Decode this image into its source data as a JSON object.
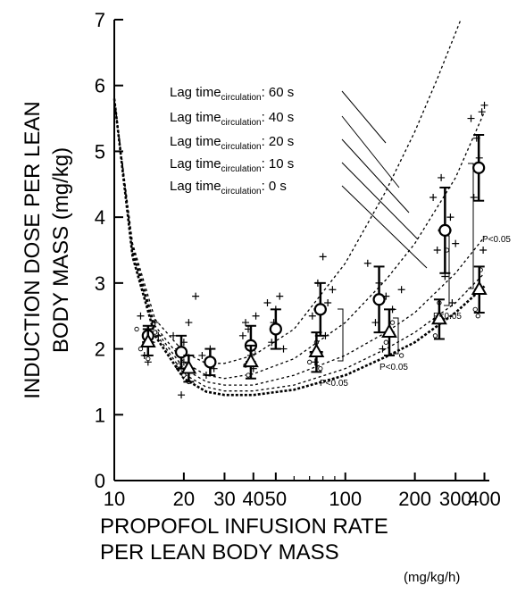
{
  "chart_data": {
    "type": "scatter",
    "title": "",
    "ylabel_lines": [
      "INDUCTION DOSE PER LEAN",
      "BODY MASS (mg/kg)"
    ],
    "xlabel_lines": [
      "PROPOFOL INFUSION RATE",
      "PER LEAN BODY MASS"
    ],
    "xunit": "(mg/kg/h)",
    "xscale": "log",
    "xlim": [
      10,
      420
    ],
    "ylim": [
      0,
      7
    ],
    "x_ticks": [
      10,
      20,
      30,
      40,
      50,
      100,
      200,
      300,
      400
    ],
    "x_tick_labels": [
      "10",
      "20",
      "30",
      "40",
      "50",
      "100",
      "200",
      "300",
      "400"
    ],
    "y_ticks": [
      0,
      1,
      2,
      3,
      4,
      5,
      6,
      7
    ],
    "y_tick_labels": [
      "0",
      "1",
      "2",
      "3",
      "4",
      "5",
      "6",
      "7"
    ],
    "legend_placement": "top-center",
    "legend": [
      {
        "prefix": "Lag time",
        "sub": "circulation",
        "suffix": ": 60 s"
      },
      {
        "prefix": "Lag time",
        "sub": "circulation",
        "suffix": ": 40 s"
      },
      {
        "prefix": "Lag time",
        "sub": "circulation",
        "suffix": ": 20 s"
      },
      {
        "prefix": "Lag time",
        "sub": "circulation",
        "suffix": ": 10 s"
      },
      {
        "prefix": "Lag time",
        "sub": "circulation",
        "suffix": ":  0 s"
      }
    ],
    "annotations": [
      "P<0.05",
      "P<0.05",
      "P<0.05",
      "P<0.05"
    ],
    "model_curves": [
      {
        "name": "60 s",
        "x": [
          10,
          12,
          15,
          20,
          25,
          30,
          40,
          60,
          100,
          150,
          200,
          250,
          300,
          350
        ],
        "y": [
          5.8,
          3.6,
          2.45,
          1.95,
          1.78,
          1.78,
          1.9,
          2.3,
          3.3,
          4.4,
          5.3,
          6.1,
          6.8,
          7.4
        ]
      },
      {
        "name": "40 s",
        "x": [
          10,
          12,
          15,
          20,
          25,
          30,
          40,
          60,
          100,
          150,
          200,
          300,
          400
        ],
        "y": [
          5.8,
          3.55,
          2.35,
          1.8,
          1.6,
          1.55,
          1.62,
          1.85,
          2.4,
          3.05,
          3.6,
          4.6,
          5.6
        ]
      },
      {
        "name": "20 s",
        "x": [
          10,
          12,
          15,
          20,
          25,
          30,
          40,
          60,
          100,
          150,
          200,
          300,
          400
        ],
        "y": [
          5.8,
          3.5,
          2.3,
          1.7,
          1.5,
          1.45,
          1.45,
          1.6,
          1.9,
          2.25,
          2.55,
          3.15,
          3.7
        ]
      },
      {
        "name": "10 s",
        "x": [
          10,
          12,
          15,
          20,
          25,
          30,
          40,
          60,
          100,
          150,
          200,
          300,
          400
        ],
        "y": [
          5.8,
          3.45,
          2.25,
          1.62,
          1.42,
          1.36,
          1.36,
          1.45,
          1.7,
          2.0,
          2.25,
          2.7,
          3.15
        ]
      },
      {
        "name": "0 s",
        "x": [
          10,
          12,
          15,
          20,
          25,
          30,
          40,
          60,
          100,
          150,
          200,
          300,
          400
        ],
        "y": [
          5.8,
          3.4,
          2.2,
          1.55,
          1.35,
          1.3,
          1.3,
          1.38,
          1.6,
          1.88,
          2.1,
          2.55,
          2.95
        ]
      }
    ],
    "means_circles": [
      {
        "x": 14,
        "y": 2.2,
        "sd": 0.15,
        "xsd": 0.8
      },
      {
        "x": 19.5,
        "y": 1.95,
        "sd": 0.25,
        "xsd": 1.2
      },
      {
        "x": 26,
        "y": 1.8,
        "sd": 0.2,
        "xsd": 1.5
      },
      {
        "x": 39,
        "y": 2.05,
        "sd": 0.3,
        "xsd": 2
      },
      {
        "x": 50,
        "y": 2.3,
        "sd": 0.3,
        "xsd": 3
      },
      {
        "x": 78,
        "y": 2.6,
        "sd": 0.4,
        "xsd": 5
      },
      {
        "x": 140,
        "y": 2.75,
        "sd": 0.5,
        "xsd": 8
      },
      {
        "x": 270,
        "y": 3.8,
        "sd": 0.65,
        "xsd": 18
      },
      {
        "x": 378,
        "y": 4.75,
        "sd": 0.5,
        "xsd": 18
      }
    ],
    "means_triangles": [
      {
        "x": 14,
        "y": 2.1,
        "sd": 0.2,
        "xsd": 0.8
      },
      {
        "x": 21,
        "y": 1.7,
        "sd": 0.2,
        "xsd": 1.2
      },
      {
        "x": 39,
        "y": 1.8,
        "sd": 0.25,
        "xsd": 2
      },
      {
        "x": 75,
        "y": 1.95,
        "sd": 0.3,
        "xsd": 5
      },
      {
        "x": 155,
        "y": 2.25,
        "sd": 0.35,
        "xsd": 8
      },
      {
        "x": 255,
        "y": 2.45,
        "sd": 0.3,
        "xsd": 15
      },
      {
        "x": 380,
        "y": 2.9,
        "sd": 0.35,
        "xsd": 18
      }
    ],
    "points_plus": [
      [
        13.5,
        1.9
      ],
      [
        14,
        2.3
      ],
      [
        14.5,
        2.1
      ],
      [
        15,
        2.4
      ],
      [
        13,
        2.5
      ],
      [
        14,
        1.8
      ],
      [
        15.5,
        2.2
      ],
      [
        18,
        2.2
      ],
      [
        19,
        2.0
      ],
      [
        20,
        1.8
      ],
      [
        21,
        2.4
      ],
      [
        19.5,
        1.3
      ],
      [
        22.5,
        2.8
      ],
      [
        20,
        2.1
      ],
      [
        25,
        1.6
      ],
      [
        26,
        2.0
      ],
      [
        27,
        1.7
      ],
      [
        24,
        1.9
      ],
      [
        37,
        2.4
      ],
      [
        38,
        2.3
      ],
      [
        39,
        1.9
      ],
      [
        40,
        1.7
      ],
      [
        41,
        2.5
      ],
      [
        36,
        2.2
      ],
      [
        46,
        2.7
      ],
      [
        48,
        2.1
      ],
      [
        50,
        2.6
      ],
      [
        52,
        2.8
      ],
      [
        54,
        2.0
      ],
      [
        49,
        2.4
      ],
      [
        72,
        2.5
      ],
      [
        76,
        3.0
      ],
      [
        80,
        3.4
      ],
      [
        82,
        2.2
      ],
      [
        74,
        1.8
      ],
      [
        84,
        2.7
      ],
      [
        88,
        2.9
      ],
      [
        125,
        3.3
      ],
      [
        135,
        2.4
      ],
      [
        140,
        3.0
      ],
      [
        150,
        2.8
      ],
      [
        160,
        2.6
      ],
      [
        145,
        2.0
      ],
      [
        175,
        2.9
      ],
      [
        240,
        4.3
      ],
      [
        250,
        3.5
      ],
      [
        260,
        4.6
      ],
      [
        270,
        3.1
      ],
      [
        285,
        4.0
      ],
      [
        300,
        3.6
      ],
      [
        290,
        2.7
      ],
      [
        350,
        5.5
      ],
      [
        360,
        4.3
      ],
      [
        370,
        5.2
      ],
      [
        390,
        5.6
      ],
      [
        400,
        5.7
      ],
      [
        380,
        4.9
      ],
      [
        395,
        3.5
      ]
    ],
    "points_open": [
      [
        13,
        2.0
      ],
      [
        14,
        1.85
      ],
      [
        15,
        2.25
      ],
      [
        12.5,
        2.3
      ],
      [
        20,
        1.6
      ],
      [
        21,
        1.5
      ],
      [
        19,
        1.75
      ],
      [
        38,
        1.6
      ],
      [
        40,
        1.95
      ],
      [
        37,
        1.75
      ],
      [
        70,
        1.8
      ],
      [
        75,
        2.1
      ],
      [
        78,
        1.7
      ],
      [
        150,
        2.1
      ],
      [
        160,
        2.4
      ],
      [
        175,
        1.9
      ],
      [
        245,
        2.2
      ],
      [
        255,
        2.7
      ],
      [
        275,
        3.5
      ],
      [
        365,
        2.6
      ],
      [
        385,
        3.2
      ],
      [
        375,
        2.5
      ]
    ]
  }
}
